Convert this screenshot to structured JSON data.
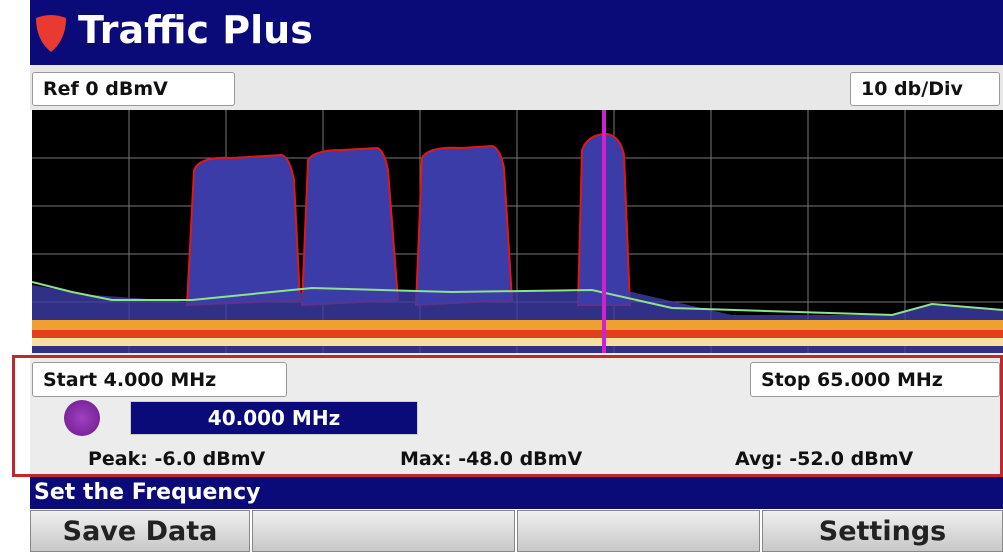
{
  "header": {
    "title": "Traffic Plus"
  },
  "top_bar": {
    "ref_level": "Ref 0 dBmV",
    "scale": "10 db/Div"
  },
  "span": {
    "start": "Start 4.000 MHz",
    "stop": "Stop 65.000 MHz"
  },
  "frequency": "40.000 MHz",
  "measurements": {
    "peak": "Peak: -6.0 dBmV",
    "max": "Max: -48.0 dBmV",
    "avg": "Avg: -52.0 dBmV"
  },
  "status": "Set the Frequency",
  "softkeys": {
    "left": "Save Data",
    "right": "Settings"
  }
}
